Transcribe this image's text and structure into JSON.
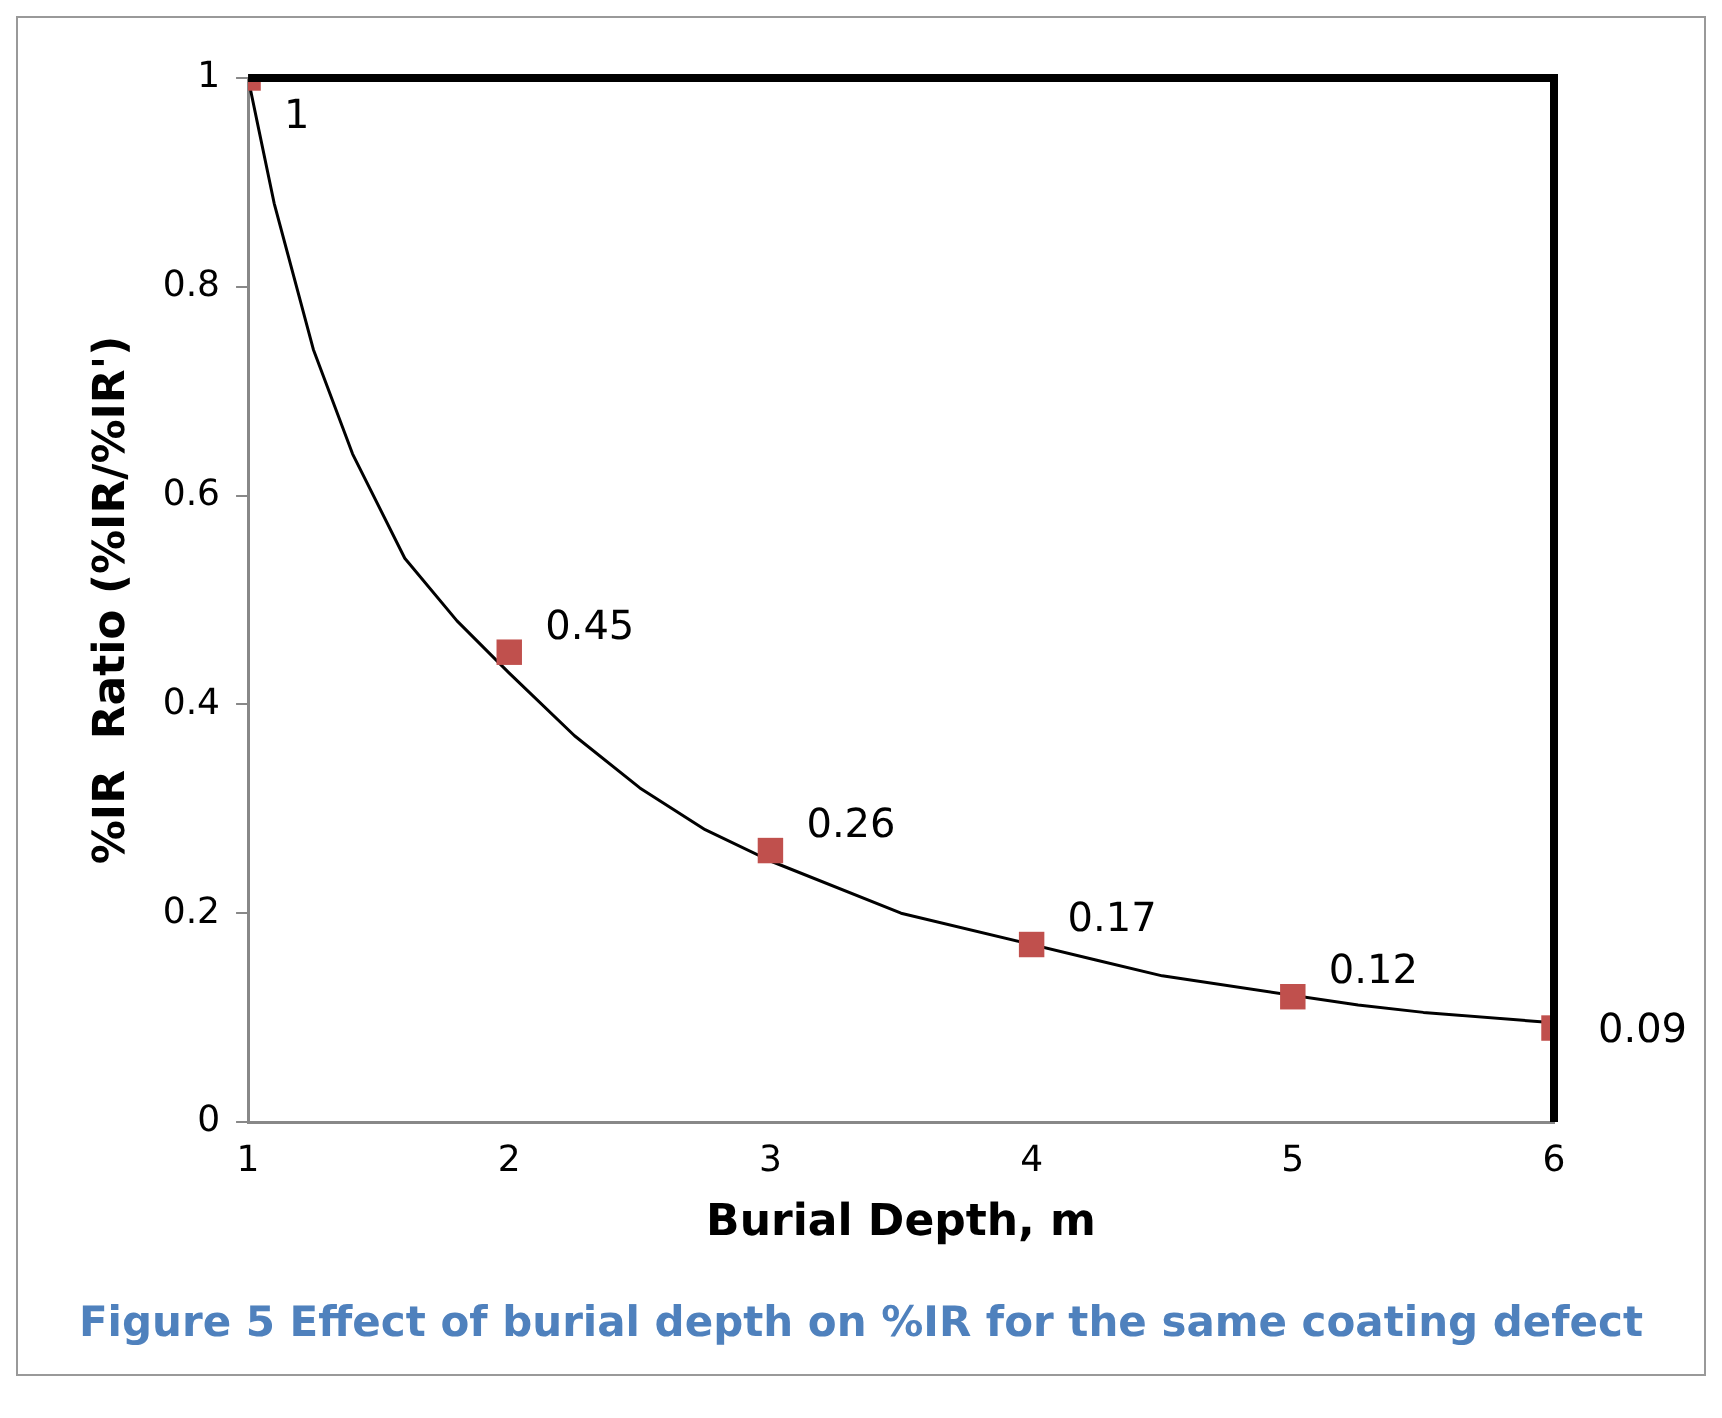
{
  "chart_data": {
    "type": "scatter",
    "xlabel": "Burial Depth, m",
    "ylabel": "%IR  Ratio (%IR/%IR')",
    "series": [
      {
        "color": "#c0504d",
        "marker": "square",
        "x": [
          1,
          2,
          3,
          4,
          5,
          6
        ],
        "values": [
          1,
          0.45,
          0.26,
          0.17,
          0.12,
          0.09
        ],
        "value_labels": [
          "1",
          "0.45",
          "0.26",
          "0.17",
          "0.12",
          "0.09"
        ]
      },
      {
        "type": "line",
        "color": "#000000",
        "marker": "none",
        "x": [
          1,
          1.1,
          1.25,
          1.4,
          1.6,
          1.8,
          2,
          2.25,
          2.5,
          2.75,
          3,
          3.5,
          4.25,
          4.5,
          5.25,
          5.5,
          6
        ],
        "values": [
          1,
          0.88,
          0.74,
          0.64,
          0.54,
          0.48,
          0.43,
          0.37,
          0.32,
          0.28,
          0.25,
          0.2,
          0.155,
          0.14,
          0.112,
          0.105,
          0.095
        ]
      }
    ],
    "xlim": [
      1,
      6
    ],
    "xticks": [
      1,
      2,
      3,
      4,
      5,
      6
    ],
    "ylim": [
      0,
      1
    ],
    "yticks": [
      0,
      0.2,
      0.4,
      0.6,
      0.8,
      1
    ],
    "grid": false,
    "legend": false,
    "annotations": [
      "Figure 5 Effect of burial depth on  %IR for the same coating defect"
    ]
  }
}
